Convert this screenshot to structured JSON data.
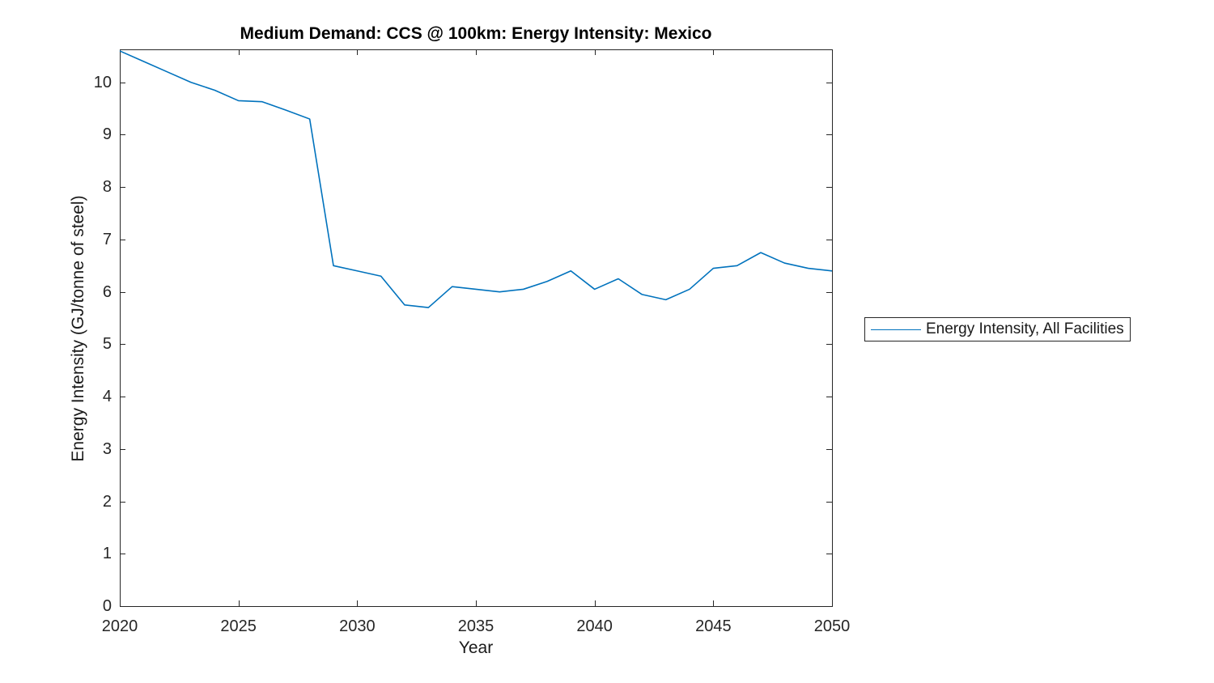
{
  "chart_data": {
    "type": "line",
    "title": "Medium Demand: CCS @ 100km: Energy Intensity: Mexico",
    "xlabel": "Year",
    "ylabel": "Energy Intensity (GJ/tonne of steel)",
    "xlim": [
      2020,
      2050
    ],
    "ylim": [
      0,
      10.63
    ],
    "xticks": [
      2020,
      2025,
      2030,
      2035,
      2040,
      2045,
      2050
    ],
    "yticks": [
      0,
      1,
      2,
      3,
      4,
      5,
      6,
      7,
      8,
      9,
      10
    ],
    "grid": false,
    "legend_position": "right-outside",
    "x": [
      2020,
      2021,
      2022,
      2023,
      2024,
      2025,
      2026,
      2027,
      2028,
      2029,
      2030,
      2031,
      2032,
      2033,
      2034,
      2035,
      2036,
      2037,
      2038,
      2039,
      2040,
      2041,
      2042,
      2043,
      2044,
      2045,
      2046,
      2047,
      2048,
      2049,
      2050
    ],
    "series": [
      {
        "name": "Energy Intensity, All Facilities",
        "color": "#0072BD",
        "values": [
          10.6,
          10.4,
          10.2,
          10.0,
          9.85,
          9.65,
          9.63,
          9.47,
          9.3,
          6.5,
          6.4,
          6.3,
          5.75,
          5.7,
          6.1,
          6.05,
          6.0,
          6.05,
          6.2,
          6.4,
          6.05,
          6.25,
          5.95,
          5.85,
          6.05,
          6.45,
          6.5,
          6.75,
          6.55,
          6.45,
          6.4
        ]
      }
    ]
  },
  "colors": {
    "axis": "#262626",
    "line": "#0072BD",
    "background": "#ffffff"
  }
}
